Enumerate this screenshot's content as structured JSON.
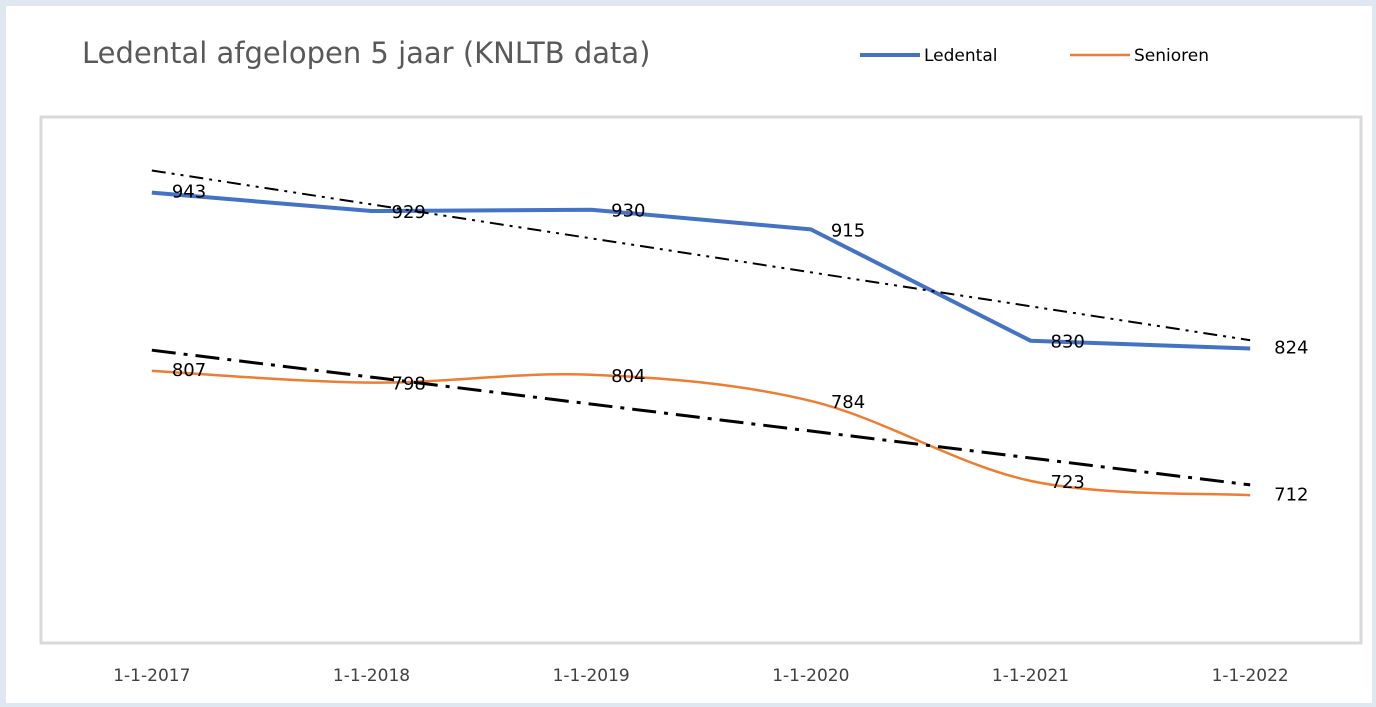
{
  "chart_data": {
    "type": "line",
    "title": "Ledental afgelopen 5 jaar (KNLTB data)",
    "categories": [
      "1-1-2017",
      "1-1-2018",
      "1-1-2019",
      "1-1-2020",
      "1-1-2021",
      "1-1-2022"
    ],
    "series": [
      {
        "name": "Ledental",
        "color": "#4472c4",
        "smooth": false,
        "trendline": "linear",
        "values": [
          943,
          929,
          930,
          915,
          830,
          824
        ]
      },
      {
        "name": "Senioren",
        "color": "#ed7d31",
        "smooth": true,
        "trendline": "linear",
        "values": [
          807,
          798,
          804,
          784,
          723,
          712
        ]
      }
    ],
    "ylim": [
      600,
      1000
    ],
    "data_labels": true,
    "legend": "top-right"
  }
}
